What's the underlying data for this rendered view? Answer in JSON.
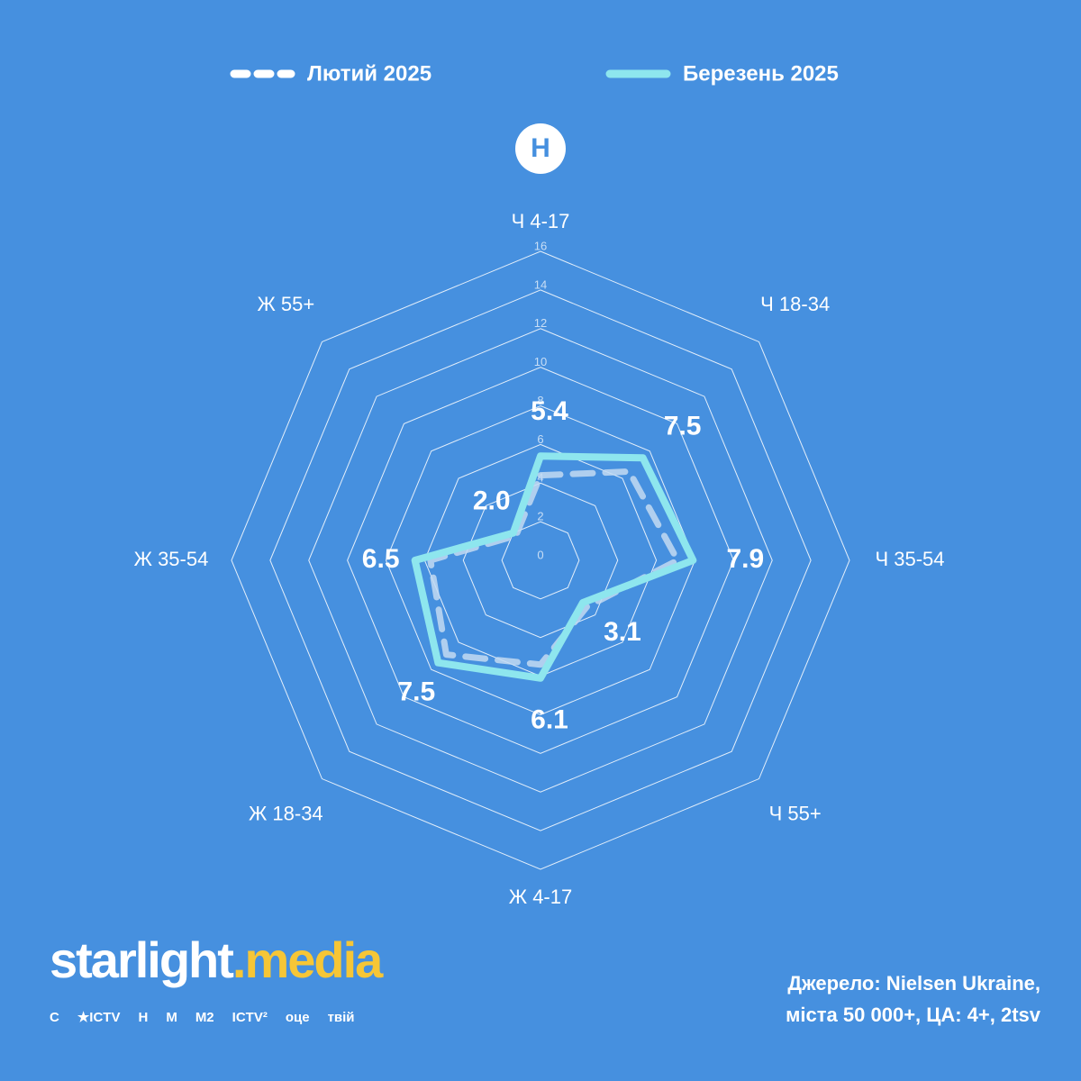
{
  "chart_data": {
    "type": "radar",
    "categories": [
      "Ч 4-17",
      "Ч 18-34",
      "Ч 35-54",
      "Ч 55+",
      "Ж 4-17",
      "Ж 18-34",
      "Ж 35-54",
      "Ж 55+"
    ],
    "series": [
      {
        "name": "Лютий 2025",
        "color": "#c3daf2",
        "dashed": true,
        "values": [
          4.4,
          6.5,
          7.1,
          3.4,
          5.4,
          6.9,
          5.7,
          1.8
        ]
      },
      {
        "name": "Березень 2025",
        "color": "#8ee6ee",
        "dashed": false,
        "values": [
          5.4,
          7.5,
          7.9,
          3.1,
          6.1,
          7.5,
          6.5,
          2.0
        ],
        "value_labels": [
          "5.4",
          "7.5",
          "7.9",
          "3.1",
          "6.1",
          "7.5",
          "6.5",
          "2.0"
        ]
      }
    ],
    "rlim": [
      0,
      16
    ],
    "rticks": [
      0,
      2,
      4,
      6,
      8,
      10,
      12,
      14,
      16
    ],
    "grid": true,
    "legend": "top"
  },
  "channel_badge": "Н",
  "logo": {
    "part1": "starlight",
    "part2": ".media"
  },
  "channels": [
    "C",
    "★ICTV",
    "Н",
    "M",
    "M2",
    "ICTV²",
    "оце",
    "твій"
  ],
  "source": [
    "Джерело: Nielsen Ukraine,",
    "міста 50 000+, ЦА: 4+, 2tsv"
  ]
}
